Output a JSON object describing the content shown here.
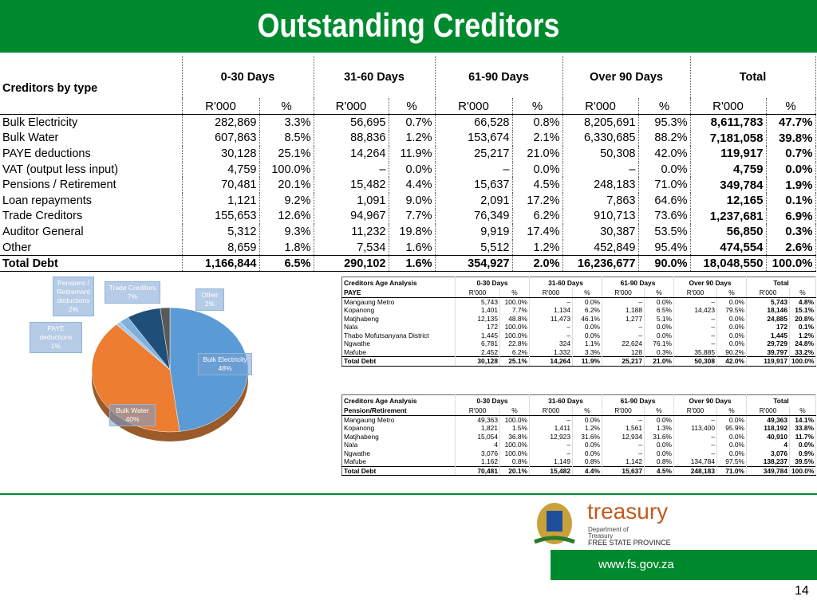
{
  "title": "Outstanding Creditors",
  "main_table": {
    "corner": "Creditors by type",
    "groups": [
      "0-30 Days",
      "31-60 Days",
      "61-90 Days",
      "Over 90 Days",
      "Total"
    ],
    "subheaders": [
      "R'000",
      "%",
      "R'000",
      "%",
      "R'000",
      "%",
      "R'000",
      "%",
      "R'000",
      "%"
    ],
    "rows": [
      [
        "Bulk Electricity",
        "282,869",
        "3.3%",
        "56,695",
        "0.7%",
        "66,528",
        "0.8%",
        "8,205,691",
        "95.3%",
        "8,611,783",
        "47.7%"
      ],
      [
        "Bulk Water",
        "607,863",
        "8.5%",
        "88,836",
        "1.2%",
        "153,674",
        "2.1%",
        "6,330,685",
        "88.2%",
        "7,181,058",
        "39.8%"
      ],
      [
        "PAYE deductions",
        "30,128",
        "25.1%",
        "14,264",
        "11.9%",
        "25,217",
        "21.0%",
        "50,308",
        "42.0%",
        "119,917",
        "0.7%"
      ],
      [
        "VAT (output less input)",
        "4,759",
        "100.0%",
        "–",
        "0.0%",
        "–",
        "0.0%",
        "–",
        "0.0%",
        "4,759",
        "0.0%"
      ],
      [
        "Pensions / Retirement",
        "70,481",
        "20.1%",
        "15,482",
        "4.4%",
        "15,637",
        "4.5%",
        "248,183",
        "71.0%",
        "349,784",
        "1.9%"
      ],
      [
        "Loan repayments",
        "1,121",
        "9.2%",
        "1,091",
        "9.0%",
        "2,091",
        "17.2%",
        "7,863",
        "64.6%",
        "12,165",
        "0.1%"
      ],
      [
        "Trade Creditors",
        "155,653",
        "12.6%",
        "94,967",
        "7.7%",
        "76,349",
        "6.2%",
        "910,713",
        "73.6%",
        "1,237,681",
        "6.9%"
      ],
      [
        "Auditor General",
        "5,312",
        "9.3%",
        "11,232",
        "19.8%",
        "9,919",
        "17.4%",
        "30,387",
        "53.5%",
        "56,850",
        "0.3%"
      ],
      [
        "Other",
        "8,659",
        "1.8%",
        "7,534",
        "1.6%",
        "5,512",
        "1.2%",
        "452,849",
        "95.4%",
        "474,554",
        "2.6%"
      ],
      [
        "Total Debt",
        "1,166,844",
        "6.5%",
        "290,102",
        "1.6%",
        "354,927",
        "2.0%",
        "16,236,677",
        "90.0%",
        "18,048,550",
        "100.0%"
      ]
    ]
  },
  "pie_chart": {
    "type": "pie",
    "labels": [
      "Bulk Electricity",
      "Bulk Water",
      "PAYE deductions",
      "Pensions / Retirement deductions",
      "Trade Creditors",
      "Other"
    ],
    "values": [
      48,
      40,
      1,
      2,
      7,
      2
    ],
    "value_labels": [
      "48%",
      "40%",
      "1%",
      "2%",
      "7%",
      "2%"
    ],
    "colors": [
      "#5b9bd5",
      "#ed7d31",
      "#a5c8e8",
      "#7fb0dc",
      "#1f4e79",
      "#595959"
    ]
  },
  "paye_table": {
    "title": "Creditors Age Analysis",
    "subtitle": "PAYE",
    "groups": [
      "0-30 Days",
      "31-60 Days",
      "61-90 Days",
      "Over 90 Days",
      "Total"
    ],
    "subheaders": [
      "R'000",
      "%",
      "R'000",
      "%",
      "R'000",
      "%",
      "R'000",
      "%",
      "R'000",
      "%"
    ],
    "rows": [
      [
        "Mangaung Metro",
        "5,743",
        "100.0%",
        "–",
        "0.0%",
        "–",
        "0.0%",
        "–",
        "0.0%",
        "5,743",
        "4.8%"
      ],
      [
        "Kopanong",
        "1,401",
        "7.7%",
        "1,134",
        "6.2%",
        "1,188",
        "6.5%",
        "14,423",
        "79.5%",
        "18,146",
        "15.1%"
      ],
      [
        "Matjhabeng",
        "12,135",
        "48.8%",
        "11,473",
        "46.1%",
        "1,277",
        "5.1%",
        "–",
        "0.0%",
        "24,885",
        "20.8%"
      ],
      [
        "Nala",
        "172",
        "100.0%",
        "–",
        "0.0%",
        "–",
        "0.0%",
        "–",
        "0.0%",
        "172",
        "0.1%"
      ],
      [
        "Thabo Mofutsanyana District",
        "1,445",
        "100.0%",
        "–",
        "0.0%",
        "–",
        "0.0%",
        "–",
        "0.0%",
        "1,445",
        "1.2%"
      ],
      [
        "Ngwathe",
        "6,781",
        "22.8%",
        "324",
        "1.1%",
        "22,624",
        "76.1%",
        "–",
        "0.0%",
        "29,729",
        "24.8%"
      ],
      [
        "Mafube",
        "2,452",
        "6.2%",
        "1,332",
        "3.3%",
        "128",
        "0.3%",
        "35,885",
        "90.2%",
        "39,797",
        "33.2%"
      ],
      [
        "Total Debt",
        "30,128",
        "25.1%",
        "14,264",
        "11.9%",
        "25,217",
        "21.0%",
        "50,308",
        "42.0%",
        "119,917",
        "100.0%"
      ]
    ]
  },
  "pension_table": {
    "title": "Creditors Age Analysis",
    "subtitle": "Pension/Retirement",
    "groups": [
      "0-30 Days",
      "31-60 Days",
      "61-90 Days",
      "Over 90 Days",
      "Total"
    ],
    "subheaders": [
      "R'000",
      "%",
      "R'000",
      "%",
      "R'000",
      "%",
      "R'000",
      "%",
      "R'000",
      "%"
    ],
    "rows": [
      [
        "Mangaung Metro",
        "49,363",
        "100.0%",
        "–",
        "0.0%",
        "–",
        "0.0%",
        "–",
        "0.0%",
        "49,363",
        "14.1%"
      ],
      [
        "Kopanong",
        "1,821",
        "1.5%",
        "1,411",
        "1.2%",
        "1,561",
        "1.3%",
        "113,400",
        "95.9%",
        "118,192",
        "33.8%"
      ],
      [
        "Matjhabeng",
        "15,054",
        "36.8%",
        "12,923",
        "31.6%",
        "12,934",
        "31.6%",
        "–",
        "0.0%",
        "40,910",
        "11.7%"
      ],
      [
        "Nala",
        "4",
        "100.0%",
        "–",
        "0.0%",
        "–",
        "0.0%",
        "–",
        "0.0%",
        "4",
        "0.0%"
      ],
      [
        "Ngwathe",
        "3,076",
        "100.0%",
        "–",
        "0.0%",
        "–",
        "0.0%",
        "–",
        "0.0%",
        "3,076",
        "0.9%"
      ],
      [
        "Mafube",
        "1,162",
        "0.8%",
        "1,149",
        "0.8%",
        "1,142",
        "0.8%",
        "134,784",
        "97.5%",
        "138,237",
        "39.5%"
      ],
      [
        "Total Debt",
        "70,481",
        "20.1%",
        "15,482",
        "4.4%",
        "15,637",
        "4.5%",
        "248,183",
        "71.0%",
        "349,784",
        "100.0%"
      ]
    ]
  },
  "footer": {
    "brand": "treasury",
    "dept_line1": "Department of",
    "dept_line2": "Treasury",
    "province": "FREE STATE PROVINCE",
    "url": "www.fs.gov.za",
    "page": "14"
  }
}
